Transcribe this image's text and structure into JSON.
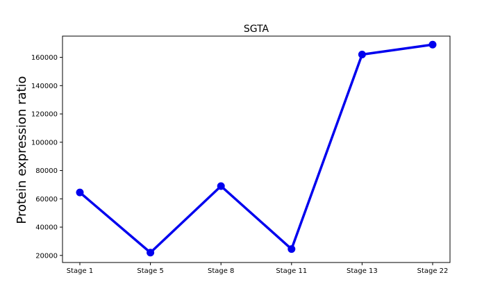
{
  "chart_data": {
    "type": "line",
    "title": "SGTA",
    "xlabel": "",
    "ylabel": "Protein expression ratio",
    "categories": [
      "Stage 1",
      "Stage 5",
      "Stage 8",
      "Stage 11",
      "Stage 13",
      "Stage 22"
    ],
    "series": [
      {
        "values": [
          64500,
          22000,
          69000,
          24500,
          162000,
          169000
        ]
      }
    ],
    "ylim": [
      15000,
      175000
    ],
    "yticks": [
      20000,
      40000,
      60000,
      80000,
      100000,
      120000,
      140000,
      160000
    ],
    "grid": false,
    "colors": {
      "line": "#0000ee",
      "marker": "#0000ee",
      "axes": "#000000"
    }
  }
}
